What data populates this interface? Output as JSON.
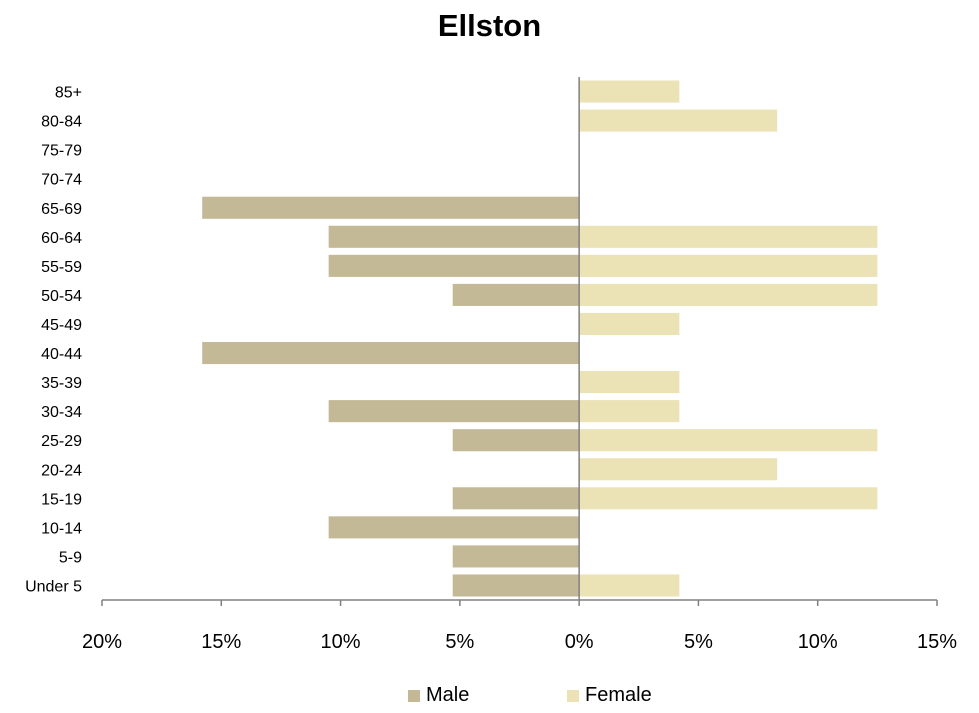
{
  "chart_data": {
    "type": "bar",
    "orientation": "horizontal",
    "title": "Ellston",
    "categories": [
      "85+",
      "80-84",
      "75-79",
      "70-74",
      "65-69",
      "60-64",
      "55-59",
      "50-54",
      "45-49",
      "40-44",
      "35-39",
      "30-34",
      "25-29",
      "20-24",
      "15-19",
      "10-14",
      "5-9",
      "Under 5"
    ],
    "series": [
      {
        "name": "Male",
        "color": "#c4b996",
        "values": [
          0,
          0,
          0,
          0,
          15.8,
          10.5,
          10.5,
          5.3,
          0,
          15.8,
          0,
          10.5,
          5.3,
          0,
          5.3,
          10.5,
          5.3,
          5.3
        ]
      },
      {
        "name": "Female",
        "color": "#ebe2b6",
        "values": [
          4.2,
          8.3,
          0,
          0,
          0,
          12.5,
          12.5,
          12.5,
          4.2,
          0,
          4.2,
          4.2,
          12.5,
          8.3,
          12.5,
          0,
          0,
          4.2
        ]
      }
    ],
    "xlim": [
      -20,
      15
    ],
    "xticks": [
      -20,
      -15,
      -10,
      -5,
      0,
      5,
      10,
      15
    ],
    "xtick_labels": [
      "20%",
      "15%",
      "10%",
      "5%",
      "0%",
      "5%",
      "10%",
      "15%"
    ],
    "xlabel": "",
    "ylabel": "",
    "grid": false,
    "legend_position": "bottom"
  }
}
